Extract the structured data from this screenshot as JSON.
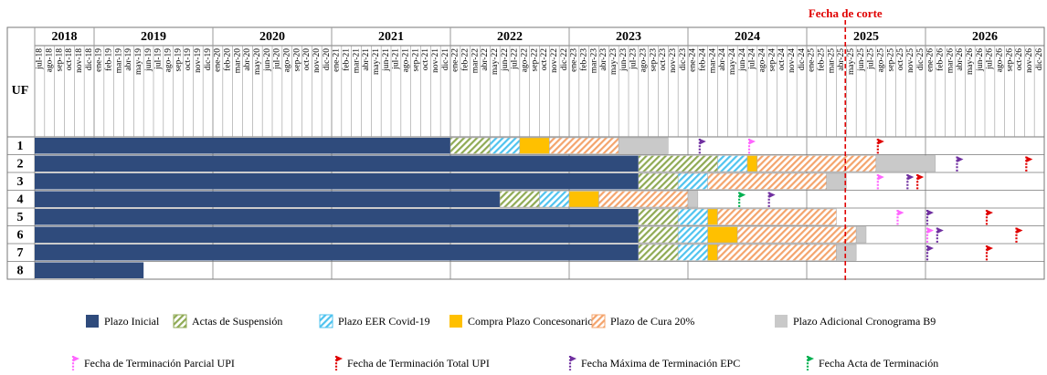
{
  "chart_data": {
    "type": "gantt",
    "row_header": "UF",
    "cut_label": "Fecha de corte",
    "cut_month": "abr-25",
    "cut_color": "#e00000",
    "years": [
      {
        "label": "2018",
        "start": "jul-18",
        "end": "dic-18"
      },
      {
        "label": "2019",
        "start": "ene-19",
        "end": "dic-19"
      },
      {
        "label": "2020",
        "start": "ene-20",
        "end": "dic-20"
      },
      {
        "label": "2021",
        "start": "ene-21",
        "end": "dic-21"
      },
      {
        "label": "2022",
        "start": "ene-22",
        "end": "dic-22"
      },
      {
        "label": "2023",
        "start": "ene-23",
        "end": "dic-23"
      },
      {
        "label": "2024",
        "start": "ene-24",
        "end": "dic-24"
      },
      {
        "label": "2025",
        "start": "ene-25",
        "end": "dic-25"
      },
      {
        "label": "2026",
        "start": "ene-26",
        "end": "dic-26"
      }
    ],
    "categories": [
      "jul-18",
      "ago-18",
      "sep-18",
      "oct-18",
      "nov-18",
      "dic-18",
      "ene-19",
      "feb-19",
      "mar-19",
      "abr-19",
      "may-19",
      "jun-19",
      "jul-19",
      "ago-19",
      "sep-19",
      "oct-19",
      "nov-19",
      "dic-19",
      "ene-20",
      "feb-20",
      "mar-20",
      "abr-20",
      "may-20",
      "jun-20",
      "jul-20",
      "ago-20",
      "sep-20",
      "oct-20",
      "nov-20",
      "dic-20",
      "ene-21",
      "feb-21",
      "mar-21",
      "abr-21",
      "may-21",
      "jun-21",
      "jul-21",
      "ago-21",
      "sep-21",
      "oct-21",
      "nov-21",
      "dic-21",
      "ene-22",
      "feb-22",
      "mar-22",
      "abr-22",
      "may-22",
      "jun-22",
      "jul-22",
      "ago-22",
      "sep-22",
      "oct-22",
      "nov-22",
      "dic-22",
      "ene-23",
      "feb-23",
      "mar-23",
      "abr-23",
      "may-23",
      "jun-23",
      "jul-23",
      "ago-23",
      "sep-23",
      "oct-23",
      "nov-23",
      "dic-23",
      "ene-24",
      "feb-24",
      "mar-24",
      "abr-24",
      "may-24",
      "jun-24",
      "jul-24",
      "ago-24",
      "sep-24",
      "oct-24",
      "nov-24",
      "dic-24",
      "ene-25",
      "feb-25",
      "mar-25",
      "abr-25",
      "may-25",
      "jun-25",
      "jul-25",
      "ago-25",
      "sep-25",
      "oct-25",
      "nov-25",
      "dic-25",
      "ene-26",
      "feb-26",
      "mar-26",
      "abr-26",
      "may-26",
      "jun-26",
      "jul-26",
      "ago-26",
      "sep-26",
      "oct-26",
      "nov-26",
      "dic-26"
    ],
    "phases": [
      {
        "name": "Plazo Inicial",
        "color": "#2f4b7c",
        "hatch": false
      },
      {
        "name": "Actas de Suspensión",
        "color": "#8faa54",
        "hatch": true
      },
      {
        "name": "Plazo EER Covid-19",
        "color": "#4fc3ef",
        "hatch": true
      },
      {
        "name": "Compra Plazo Concesonario",
        "color": "#ffc000",
        "hatch": false
      },
      {
        "name": "Plazo de Cura 20%",
        "color": "#f4a46c",
        "hatch": true
      },
      {
        "name": "Plazo Adicional Cronograma B9",
        "color": "#c9c9c9",
        "hatch": false
      }
    ],
    "markers": [
      {
        "name": "Fecha de Terminación Parcial UPI",
        "color": "#ff66ff"
      },
      {
        "name": "Fecha de Terminación Total UPI",
        "color": "#e00000"
      },
      {
        "name": "Fecha Máxima de Terminación EPC",
        "color": "#7030a0"
      },
      {
        "name": "Fecha Acta de Terminación",
        "color": "#00b050"
      }
    ],
    "rows": [
      {
        "label": "1",
        "segments": [
          {
            "phase": 0,
            "start": "jul-18",
            "end": "dic-21"
          },
          {
            "phase": 1,
            "start": "ene-22",
            "end": "abr-22"
          },
          {
            "phase": 2,
            "start": "may-22",
            "end": "jul-22"
          },
          {
            "phase": 3,
            "start": "ago-22",
            "end": "oct-22"
          },
          {
            "phase": 4,
            "start": "nov-22",
            "end": "may-23"
          },
          {
            "phase": 5,
            "start": "jun-23",
            "end": "oct-23"
          }
        ],
        "flags": [
          {
            "marker": 2,
            "month": "feb-24"
          },
          {
            "marker": 0,
            "month": "jul-24"
          },
          {
            "marker": 1,
            "month": "ago-25"
          }
        ]
      },
      {
        "label": "2",
        "segments": [
          {
            "phase": 0,
            "start": "jul-18",
            "end": "jul-23"
          },
          {
            "phase": 1,
            "start": "ago-23",
            "end": "mar-24"
          },
          {
            "phase": 2,
            "start": "abr-24",
            "end": "jun-24"
          },
          {
            "phase": 3,
            "start": "jul-24",
            "end": "jul-24"
          },
          {
            "phase": 4,
            "start": "ago-24",
            "end": "jul-25"
          },
          {
            "phase": 5,
            "start": "ago-25",
            "end": "ene-26"
          }
        ],
        "flags": [
          {
            "marker": 2,
            "month": "abr-26"
          },
          {
            "marker": 1,
            "month": "nov-26"
          }
        ]
      },
      {
        "label": "3",
        "segments": [
          {
            "phase": 0,
            "start": "jul-18",
            "end": "jul-23"
          },
          {
            "phase": 1,
            "start": "ago-23",
            "end": "nov-23"
          },
          {
            "phase": 2,
            "start": "dic-23",
            "end": "feb-24"
          },
          {
            "phase": 4,
            "start": "mar-24",
            "end": "feb-25"
          },
          {
            "phase": 5,
            "start": "mar-25",
            "end": "abr-25"
          }
        ],
        "flags": [
          {
            "marker": 0,
            "month": "ago-25"
          },
          {
            "marker": 2,
            "month": "nov-25"
          },
          {
            "marker": 1,
            "month": "dic-25"
          }
        ]
      },
      {
        "label": "4",
        "segments": [
          {
            "phase": 0,
            "start": "jul-18",
            "end": "may-22"
          },
          {
            "phase": 1,
            "start": "jun-22",
            "end": "sep-22"
          },
          {
            "phase": 2,
            "start": "oct-22",
            "end": "dic-22"
          },
          {
            "phase": 3,
            "start": "ene-23",
            "end": "mar-23"
          },
          {
            "phase": 4,
            "start": "abr-23",
            "end": "dic-23"
          },
          {
            "phase": 5,
            "start": "ene-24",
            "end": "ene-24"
          }
        ],
        "flags": [
          {
            "marker": 3,
            "month": "jun-24"
          },
          {
            "marker": 2,
            "month": "sep-24"
          }
        ]
      },
      {
        "label": "5",
        "segments": [
          {
            "phase": 0,
            "start": "jul-18",
            "end": "jul-23"
          },
          {
            "phase": 1,
            "start": "ago-23",
            "end": "nov-23"
          },
          {
            "phase": 2,
            "start": "dic-23",
            "end": "feb-24"
          },
          {
            "phase": 3,
            "start": "mar-24",
            "end": "mar-24"
          },
          {
            "phase": 4,
            "start": "abr-24",
            "end": "mar-25"
          }
        ],
        "flags": [
          {
            "marker": 0,
            "month": "oct-25"
          },
          {
            "marker": 2,
            "month": "ene-26"
          },
          {
            "marker": 1,
            "month": "jul-26"
          }
        ]
      },
      {
        "label": "6",
        "segments": [
          {
            "phase": 0,
            "start": "jul-18",
            "end": "jul-23"
          },
          {
            "phase": 1,
            "start": "ago-23",
            "end": "nov-23"
          },
          {
            "phase": 2,
            "start": "dic-23",
            "end": "feb-24"
          },
          {
            "phase": 3,
            "start": "mar-24",
            "end": "may-24"
          },
          {
            "phase": 4,
            "start": "jun-24",
            "end": "may-25"
          },
          {
            "phase": 5,
            "start": "jun-25",
            "end": "jun-25"
          }
        ],
        "flags": [
          {
            "marker": 0,
            "month": "ene-26"
          },
          {
            "marker": 2,
            "month": "feb-26"
          },
          {
            "marker": 1,
            "month": "oct-26"
          }
        ]
      },
      {
        "label": "7",
        "segments": [
          {
            "phase": 0,
            "start": "jul-18",
            "end": "jul-23"
          },
          {
            "phase": 1,
            "start": "ago-23",
            "end": "nov-23"
          },
          {
            "phase": 2,
            "start": "dic-23",
            "end": "feb-24"
          },
          {
            "phase": 3,
            "start": "mar-24",
            "end": "mar-24"
          },
          {
            "phase": 4,
            "start": "abr-24",
            "end": "mar-25"
          },
          {
            "phase": 5,
            "start": "abr-25",
            "end": "may-25"
          }
        ],
        "flags": [
          {
            "marker": 2,
            "month": "ene-26"
          },
          {
            "marker": 1,
            "month": "jul-26"
          }
        ]
      },
      {
        "label": "8",
        "segments": [
          {
            "phase": 0,
            "start": "jul-18",
            "end": "may-19"
          }
        ],
        "flags": []
      }
    ]
  }
}
